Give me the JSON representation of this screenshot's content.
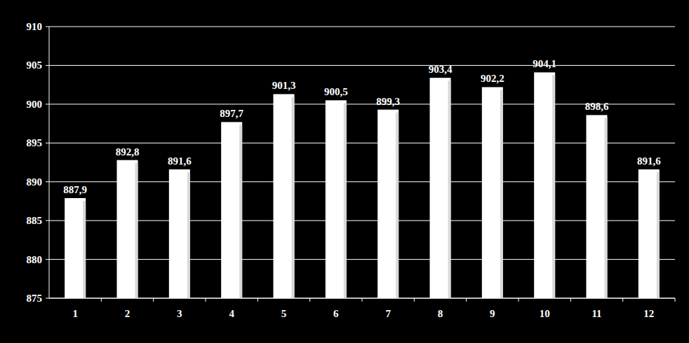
{
  "chart_data": {
    "type": "bar",
    "categories": [
      "1",
      "2",
      "3",
      "4",
      "5",
      "6",
      "7",
      "8",
      "9",
      "10",
      "11",
      "12"
    ],
    "values": [
      887.9,
      892.8,
      891.6,
      897.7,
      901.3,
      900.5,
      899.3,
      903.4,
      902.2,
      904.1,
      898.6,
      891.6
    ],
    "value_labels": [
      "887,9",
      "892,8",
      "891,6",
      "897,7",
      "901,3",
      "900,5",
      "899,3",
      "903,4",
      "902,2",
      "904,1",
      "898,6",
      "891,6"
    ],
    "color": "#ffffff",
    "ylim": [
      875,
      910
    ],
    "yticks": [
      875,
      880,
      885,
      890,
      895,
      900,
      905,
      910
    ],
    "grid": true,
    "data_labels": true
  }
}
